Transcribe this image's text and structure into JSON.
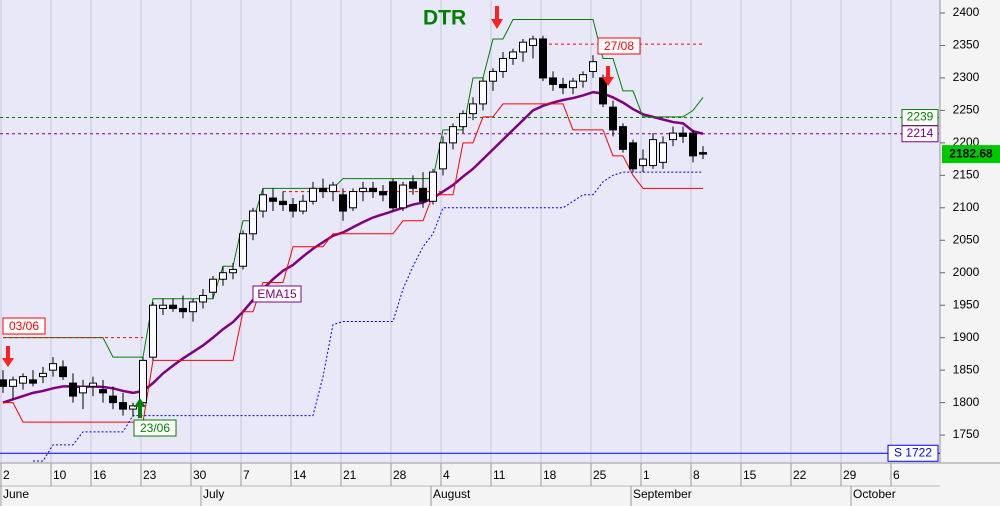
{
  "chart_data": {
    "type": "candlestick",
    "categories": [
      "2",
      null,
      null,
      null,
      null,
      "10",
      null,
      null,
      null,
      "16",
      null,
      null,
      null,
      null,
      "23",
      null,
      null,
      null,
      null,
      "30",
      null,
      null,
      null,
      null,
      "7",
      null,
      null,
      null,
      null,
      "14",
      null,
      null,
      null,
      null,
      "21",
      null,
      null,
      null,
      null,
      "28",
      null,
      null,
      null,
      null,
      "4",
      null,
      null,
      null,
      null,
      "11",
      null,
      null,
      null,
      null,
      "18",
      null,
      null,
      null,
      null,
      "25",
      null,
      null,
      null,
      null,
      "1",
      null,
      null,
      null,
      null,
      "8",
      null,
      null,
      null,
      null,
      "15",
      null,
      null,
      null,
      null,
      "22",
      null,
      null,
      null,
      null,
      "29",
      null,
      null,
      null,
      null,
      "6"
    ],
    "months": [
      "June",
      null,
      null,
      null,
      null,
      null,
      null,
      null,
      null,
      null,
      null,
      null,
      null,
      null,
      null,
      null,
      null,
      null,
      null,
      null,
      "July",
      null,
      null,
      null,
      null,
      null,
      null,
      null,
      null,
      null,
      null,
      null,
      null,
      null,
      null,
      null,
      null,
      null,
      null,
      null,
      null,
      null,
      null,
      "August",
      null,
      null,
      null,
      null,
      null,
      null,
      null,
      null,
      null,
      null,
      null,
      null,
      null,
      null,
      null,
      null,
      null,
      null,
      null,
      "September",
      null,
      null,
      null,
      null,
      null,
      null,
      null,
      null,
      null,
      null,
      null,
      null,
      null,
      null,
      null,
      null,
      null,
      null,
      null,
      null,
      null,
      "October",
      null,
      null,
      null
    ],
    "open": [
      1835,
      1825,
      1830,
      1835,
      1840,
      1850,
      1855,
      1830,
      1815,
      1825,
      1820,
      1810,
      1800,
      1790,
      1800,
      1870,
      1945,
      1950,
      1945,
      1940,
      1955,
      1970,
      1990,
      2000,
      2010,
      2060,
      2095,
      2115,
      2110,
      2105,
      2095,
      2110,
      2130,
      2125,
      2120,
      2100,
      2125,
      2130,
      2125,
      2140,
      2100,
      2140,
      2130,
      2110,
      2160,
      2200,
      2225,
      2245,
      2260,
      2295,
      2310,
      2330,
      2340,
      2350,
      2360,
      2300,
      2290,
      2285,
      2295,
      2310,
      2300,
      2255,
      2225,
      2200,
      2165,
      2165,
      2170,
      2205,
      2215,
      2215,
      2185,
      null,
      null,
      null,
      null,
      null,
      null,
      null,
      null,
      null,
      null,
      null,
      null,
      null,
      null,
      null,
      null,
      null,
      null,
      null
    ],
    "high": [
      1850,
      1840,
      1845,
      1850,
      1855,
      1870,
      1865,
      1845,
      1835,
      1840,
      1835,
      1825,
      1815,
      1800,
      1870,
      1955,
      1960,
      1960,
      1965,
      1960,
      1975,
      1995,
      2010,
      2015,
      2065,
      2100,
      2130,
      2130,
      2125,
      2115,
      2120,
      2140,
      2145,
      2140,
      2130,
      2130,
      2140,
      2140,
      2135,
      2145,
      2140,
      2150,
      2155,
      2160,
      2210,
      2230,
      2250,
      2270,
      2300,
      2315,
      2340,
      2345,
      2360,
      2365,
      2365,
      2310,
      2300,
      2300,
      2310,
      2335,
      2305,
      2265,
      2230,
      2205,
      2190,
      2215,
      2210,
      2225,
      2225,
      2220,
      2195,
      null,
      null,
      null,
      null,
      null,
      null,
      null,
      null,
      null,
      null,
      null,
      null,
      null,
      null,
      null,
      null,
      null,
      null,
      null
    ],
    "low": [
      1815,
      1805,
      1820,
      1825,
      1830,
      1840,
      1835,
      1800,
      1790,
      1810,
      1800,
      1790,
      1780,
      1778,
      1795,
      1865,
      1935,
      1940,
      1930,
      1925,
      1945,
      1960,
      1980,
      1990,
      2005,
      2050,
      2085,
      2095,
      2095,
      2085,
      2090,
      2105,
      2115,
      2110,
      2080,
      2095,
      2110,
      2115,
      2110,
      2095,
      2095,
      2120,
      2100,
      2105,
      2150,
      2190,
      2215,
      2235,
      2250,
      2280,
      2300,
      2320,
      2325,
      2330,
      2295,
      2280,
      2275,
      2275,
      2285,
      2300,
      2255,
      2210,
      2185,
      2155,
      2155,
      2160,
      2160,
      2195,
      2200,
      2170,
      2175,
      null,
      null,
      null,
      null,
      null,
      null,
      null,
      null,
      null,
      null,
      null,
      null,
      null,
      null,
      null,
      null,
      null,
      null,
      null
    ],
    "close": [
      1825,
      1835,
      1840,
      1830,
      1845,
      1860,
      1840,
      1810,
      1825,
      1830,
      1815,
      1800,
      1790,
      1795,
      1865,
      1950,
      1950,
      1945,
      1940,
      1955,
      1965,
      1990,
      2000,
      2005,
      2060,
      2095,
      2120,
      2110,
      2105,
      2095,
      2110,
      2130,
      2125,
      2135,
      2095,
      2125,
      2130,
      2125,
      2120,
      2100,
      2135,
      2130,
      2110,
      2155,
      2200,
      2225,
      2245,
      2260,
      2295,
      2310,
      2330,
      2340,
      2355,
      2360,
      2300,
      2290,
      2285,
      2295,
      2305,
      2325,
      2260,
      2220,
      2190,
      2160,
      2175,
      2205,
      2200,
      2215,
      2210,
      2180,
      2182.68,
      null,
      null,
      null,
      null,
      null,
      null,
      null,
      null,
      null,
      null,
      null,
      null,
      null,
      null,
      null,
      null,
      null,
      null,
      null
    ],
    "up_color": "#ffffff",
    "down_color": "#000000",
    "series": [
      {
        "name": "EMA15",
        "color": "#800080",
        "width": 2.5,
        "values": [
          1800,
          1805,
          1810,
          1815,
          1818,
          1822,
          1825,
          1825,
          1824,
          1825,
          1824,
          1822,
          1818,
          1815,
          1818,
          1830,
          1845,
          1857,
          1868,
          1878,
          1888,
          1900,
          1913,
          1924,
          1940,
          1958,
          1975,
          1990,
          2003,
          2012,
          2025,
          2037,
          2047,
          2057,
          2062,
          2070,
          2078,
          2085,
          2090,
          2095,
          2100,
          2105,
          2108,
          2115,
          2125,
          2135,
          2148,
          2160,
          2175,
          2190,
          2205,
          2220,
          2235,
          2250,
          2257,
          2262,
          2266,
          2269,
          2273,
          2278,
          2276,
          2270,
          2262,
          2252,
          2244,
          2240,
          2236,
          2232,
          2230,
          2218,
          2214,
          null,
          null,
          null,
          null,
          null,
          null,
          null,
          null,
          null,
          null,
          null,
          null,
          null,
          null,
          null,
          null,
          null,
          null,
          null
        ]
      },
      {
        "color": "#008000",
        "width": 1,
        "values": [
          1900,
          1900,
          1900,
          1900,
          1900,
          1900,
          1900,
          1900,
          1900,
          1900,
          1900,
          1870,
          1870,
          1870,
          1870,
          1960,
          1960,
          1960,
          1960,
          1960,
          1960,
          1960,
          2010,
          2010,
          2080,
          2080,
          2130,
          2130,
          2130,
          2130,
          2130,
          2130,
          2130,
          2130,
          2145,
          2145,
          2145,
          2145,
          2145,
          2145,
          2145,
          2145,
          2145,
          2145,
          2220,
          2220,
          2220,
          2300,
          2300,
          2360,
          2360,
          2390,
          2390,
          2390,
          2390,
          2390,
          2390,
          2390,
          2390,
          2390,
          2330,
          2330,
          2280,
          2280,
          2240,
          2240,
          2240,
          2240,
          2240,
          2250,
          2270,
          null,
          null,
          null,
          null,
          null,
          null,
          null,
          null,
          null,
          null,
          null,
          null,
          null,
          null,
          null,
          null,
          null,
          null,
          null
        ]
      },
      {
        "color": "#ff0000",
        "width": 1,
        "values": [
          1800,
          1800,
          1770,
          1770,
          1770,
          1770,
          1770,
          1770,
          1770,
          1770,
          1770,
          1770,
          1770,
          1770,
          1770,
          1865,
          1865,
          1865,
          1865,
          1865,
          1865,
          1865,
          1865,
          1865,
          1940,
          1940,
          1985,
          1985,
          1985,
          2040,
          2040,
          2040,
          2040,
          2060,
          2060,
          2060,
          2060,
          2060,
          2060,
          2060,
          2080,
          2080,
          2080,
          2120,
          2120,
          2120,
          2200,
          2200,
          2240,
          2240,
          2260,
          2260,
          2260,
          2260,
          2260,
          2260,
          2260,
          2220,
          2220,
          2220,
          2220,
          2180,
          2180,
          2150,
          2130,
          2130,
          2130,
          2130,
          2130,
          2130,
          2130,
          null,
          null,
          null,
          null,
          null,
          null,
          null,
          null,
          null,
          null,
          null,
          null,
          null,
          null,
          null,
          null,
          null,
          null,
          null
        ]
      },
      {
        "color": "#0000ff",
        "width": 1,
        "dash": "2,2",
        "values": [
          null,
          null,
          null,
          1710,
          1710,
          1735,
          1735,
          1735,
          1755,
          1755,
          1755,
          1755,
          1755,
          1780,
          1780,
          1780,
          1780,
          1780,
          1780,
          1780,
          1780,
          1780,
          1780,
          1780,
          1780,
          1780,
          1780,
          1780,
          1780,
          1780,
          1780,
          1780,
          1840,
          1920,
          1925,
          1925,
          1925,
          1925,
          1925,
          1925,
          1975,
          2010,
          2040,
          2060,
          2100,
          2100,
          2100,
          2100,
          2100,
          2100,
          2100,
          2100,
          2100,
          2100,
          2100,
          2100,
          2100,
          2110,
          2120,
          2120,
          2140,
          2150,
          2155,
          2155,
          2155,
          2155,
          2155,
          2155,
          2155,
          2155,
          2155,
          null,
          null,
          null,
          null,
          null,
          null,
          null,
          null,
          null,
          null,
          null,
          null,
          null,
          null,
          null,
          null,
          null,
          null,
          null
        ]
      },
      {
        "color": "#ff0000",
        "width": 1,
        "dash": "3,3",
        "values": [
          1900,
          1900,
          1900,
          1900,
          1900,
          1900,
          1900,
          1900,
          1900,
          1900,
          1900,
          1900,
          1900,
          1900,
          1900,
          null,
          null,
          null,
          null,
          null,
          null,
          null,
          null,
          null,
          null,
          null,
          null,
          null,
          2125,
          2125,
          2125,
          2125,
          2125,
          2125,
          2125,
          2125,
          2125,
          2125,
          2125,
          2125,
          2125,
          2125,
          2125,
          2125,
          2125,
          null,
          null,
          null,
          null,
          null,
          null,
          null,
          null,
          null,
          2352,
          2352,
          2352,
          2352,
          2352,
          2352,
          2352,
          2352,
          2352,
          2352,
          2352,
          2352,
          2352,
          2352,
          2352,
          2352,
          2352,
          null,
          null,
          null,
          null,
          null,
          null,
          null,
          null,
          null,
          null,
          null,
          null,
          null,
          null,
          null,
          null,
          null,
          null,
          null
        ]
      }
    ],
    "levels": [
      {
        "value": 2239,
        "color": "#008000",
        "dash": "3,3"
      },
      {
        "value": 2214,
        "color": "#800080",
        "dash": "3,3"
      },
      {
        "value": 1722,
        "label": "S 1722",
        "color": "#0000ff",
        "dash": "none"
      }
    ],
    "annotations": [
      "03/06",
      "23/06",
      "27/08",
      "DTR"
    ],
    "ylim": [
      1707,
      2420
    ],
    "yticks": [
      1750,
      1800,
      1850,
      1900,
      1950,
      2000,
      2050,
      2100,
      2150,
      2200,
      2250,
      2300,
      2350,
      2400
    ],
    "grid": true
  }
}
